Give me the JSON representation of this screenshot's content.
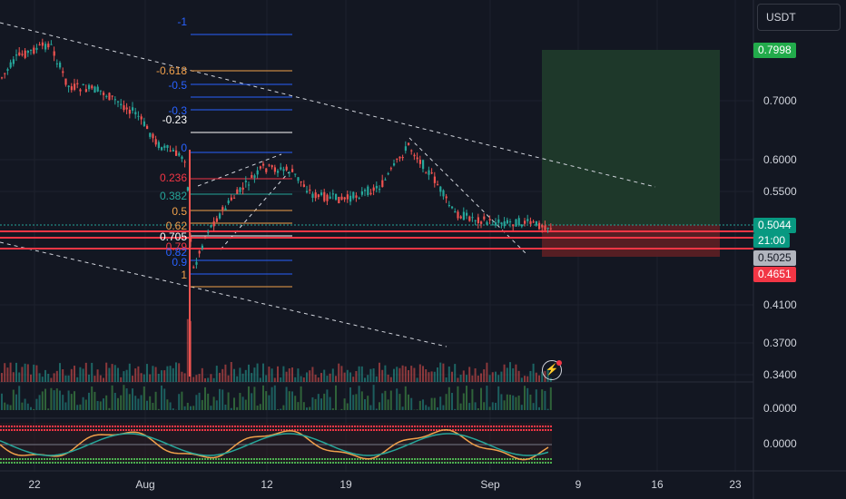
{
  "symbol_box": {
    "label": "USDT"
  },
  "price_axis": {
    "ticks": [
      "0.7000",
      "0.6000",
      "0.5500",
      "0.4100",
      "0.3700",
      "0.3400",
      "0.0000",
      "0.0000"
    ],
    "badges": {
      "target": {
        "value": "0.7998",
        "color": "#22ab4b"
      },
      "last": {
        "value": "0.5044",
        "countdown": "21:00",
        "color": "#089981"
      },
      "entry": {
        "value": "0.5025",
        "color": "#b2b5be"
      },
      "stop": {
        "value": "0.4651",
        "color": "#f23645"
      }
    }
  },
  "time_axis": {
    "ticks": [
      "22",
      "Aug",
      "12",
      "19",
      "Sep",
      "9",
      "16",
      "23"
    ]
  },
  "fib_levels": [
    {
      "label": "-1",
      "color": "#2962ff"
    },
    {
      "label": "-0.618",
      "color": "#f0a04b"
    },
    {
      "label": "-0.5",
      "color": "#2962ff"
    },
    {
      "label": "-0.3",
      "color": "#2962ff"
    },
    {
      "label": "-0.23",
      "color": "#ffffff"
    },
    {
      "label": "0",
      "color": "#2962ff"
    },
    {
      "label": "0.236",
      "color": "#f23645"
    },
    {
      "label": "0.382",
      "color": "#26a69a"
    },
    {
      "label": "0.5",
      "color": "#f0a04b"
    },
    {
      "label": "0.62",
      "color": "#f0a04b"
    },
    {
      "label": "0.705",
      "color": "#ffffff"
    },
    {
      "label": "0.79",
      "color": "#f23645"
    },
    {
      "label": "0.82",
      "color": "#2962ff"
    },
    {
      "label": "0.9",
      "color": "#2962ff"
    },
    {
      "label": "1",
      "color": "#f0a04b"
    }
  ],
  "colors": {
    "background": "#131722",
    "up": "#26a69a",
    "down": "#ef5350",
    "grid": "#1e222d",
    "trendline": "#d1d4dc",
    "profit_zone": "#1f3a2b",
    "loss_zone": "#5a1f24"
  },
  "indicators": {
    "volume": "volume-bars",
    "histogram": "momentum-histogram",
    "oscillator": "stochastic-rsi-lines"
  },
  "icons": {
    "alert": "flash-alert-icon"
  }
}
